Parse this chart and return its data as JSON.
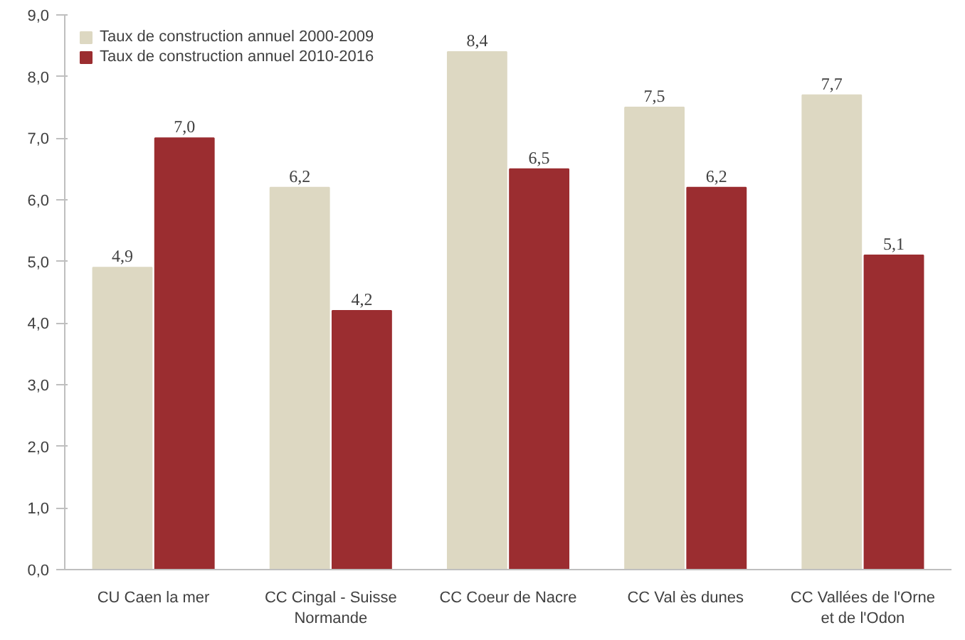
{
  "chart_data": {
    "type": "bar",
    "categories": [
      "CU Caen la mer",
      "CC Cingal - Suisse\nNormande",
      "CC Coeur de Nacre",
      "CC Val ès dunes",
      "CC Vallées de l'Orne\net de l'Odon"
    ],
    "series": [
      {
        "name": "Taux de construction annuel 2000-2009",
        "color": "#ddd8c2",
        "values": [
          4.9,
          6.2,
          8.4,
          7.5,
          7.7
        ],
        "value_labels": [
          "4,9",
          "6,2",
          "8,4",
          "7,5",
          "7,7"
        ]
      },
      {
        "name": "Taux de construction annuel 2010-2016",
        "color": "#9b2d30",
        "values": [
          7.0,
          4.2,
          6.5,
          6.2,
          5.1
        ],
        "value_labels": [
          "7,0",
          "4,2",
          "6,5",
          "6,2",
          "5,1"
        ]
      }
    ],
    "ylim": [
      0,
      9
    ],
    "yticks": [
      {
        "value": 0,
        "label": "0,0"
      },
      {
        "value": 1,
        "label": "1,0"
      },
      {
        "value": 2,
        "label": "2,0"
      },
      {
        "value": 3,
        "label": "3,0"
      },
      {
        "value": 4,
        "label": "4,0"
      },
      {
        "value": 5,
        "label": "5,0"
      },
      {
        "value": 6,
        "label": "6,0"
      },
      {
        "value": 7,
        "label": "7,0"
      },
      {
        "value": 8,
        "label": "8,0"
      },
      {
        "value": 9,
        "label": "9,0"
      }
    ],
    "legend": "top left",
    "grid": false
  }
}
